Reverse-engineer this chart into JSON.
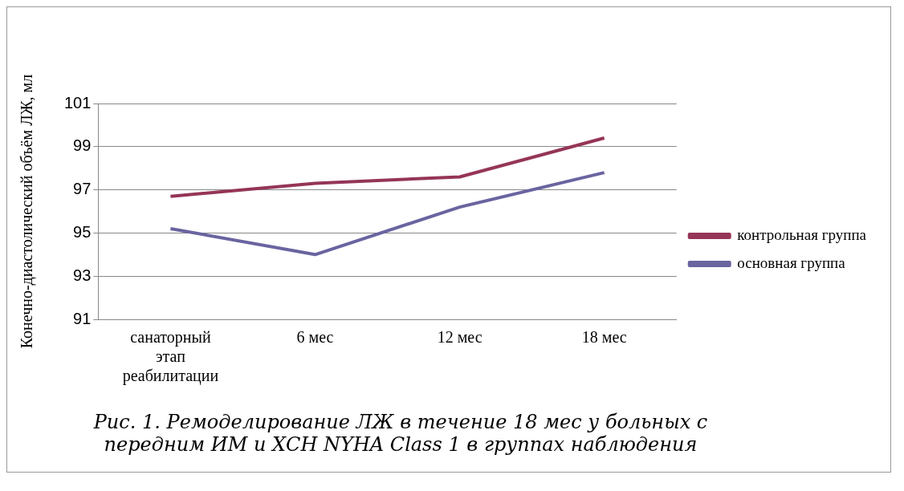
{
  "chart_data": {
    "type": "line",
    "title": "Рис. 1. Ремоделирование ЛЖ в течение 18 мес у больных с передним ИМ и ХСН NYHA Class 1 в группах наблюдения",
    "ylabel": "Конечно-диастолический объём ЛЖ, мл",
    "categories": [
      "санаторный этап реабилитации",
      "6 мес",
      "12 мес",
      "18 мес"
    ],
    "series": [
      {
        "name": "контрольная группа",
        "color": "#953558",
        "values": [
          96.7,
          97.3,
          97.6,
          99.4
        ]
      },
      {
        "name": "основная группа",
        "color": "#6a64a0",
        "values": [
          95.2,
          94.0,
          96.2,
          97.8
        ]
      }
    ],
    "ylim": [
      91,
      101
    ],
    "yticks": [
      91,
      93,
      95,
      97,
      99,
      101
    ],
    "grid": "y",
    "legend": "right",
    "marker": "none",
    "line_style": "solid"
  }
}
